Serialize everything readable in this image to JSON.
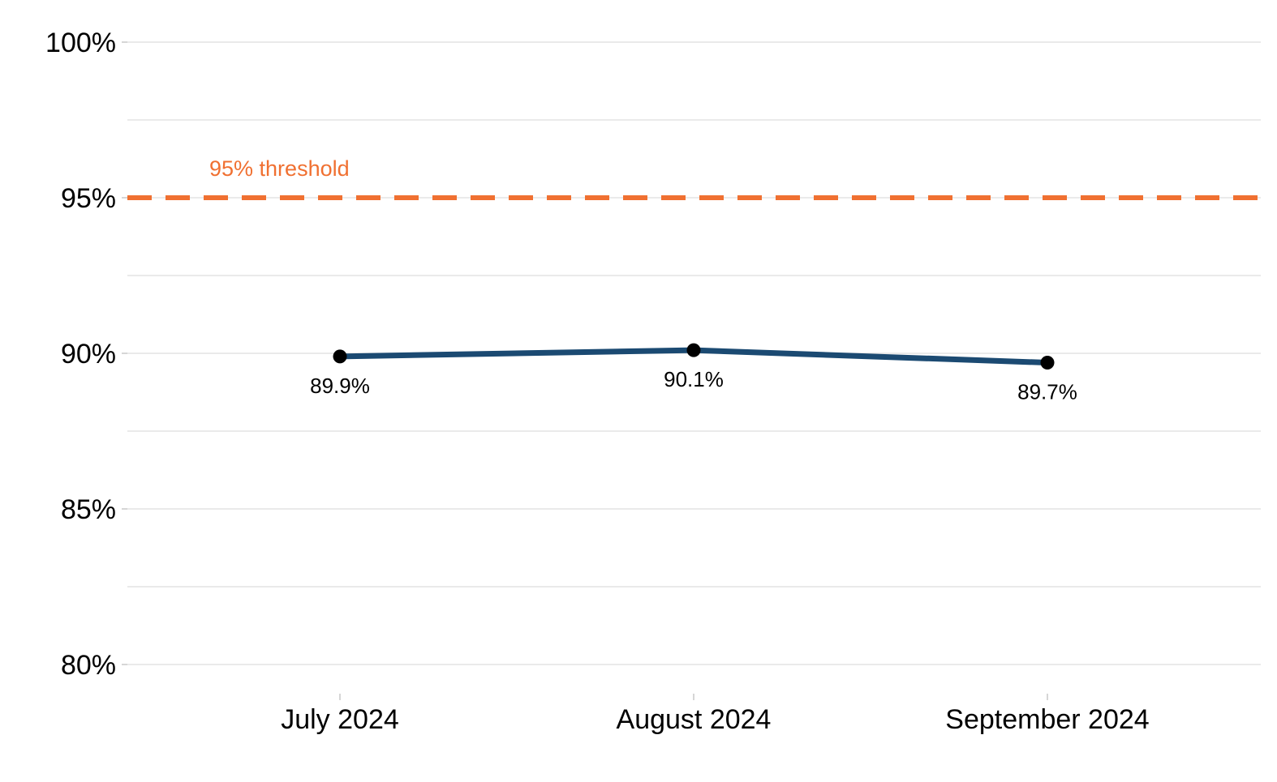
{
  "chart_data": {
    "type": "line",
    "title": "",
    "xlabel": "",
    "ylabel": "",
    "categories": [
      "July 2024",
      "August 2024",
      "September 2024"
    ],
    "series": [
      {
        "values": [
          89.9,
          90.1,
          89.7
        ],
        "labels": [
          "89.9%",
          "90.1%",
          "89.7%"
        ],
        "color": "#1b4a72"
      }
    ],
    "ylim": [
      80,
      100
    ],
    "yticks": [
      80,
      85,
      90,
      95,
      100
    ],
    "ytick_labels": [
      "80%",
      "85%",
      "90%",
      "95%",
      "100%"
    ],
    "grid": true,
    "legend": "none",
    "threshold": {
      "value": 95,
      "label": "95% threshold",
      "color": "#f07031",
      "style": "dashed"
    }
  }
}
